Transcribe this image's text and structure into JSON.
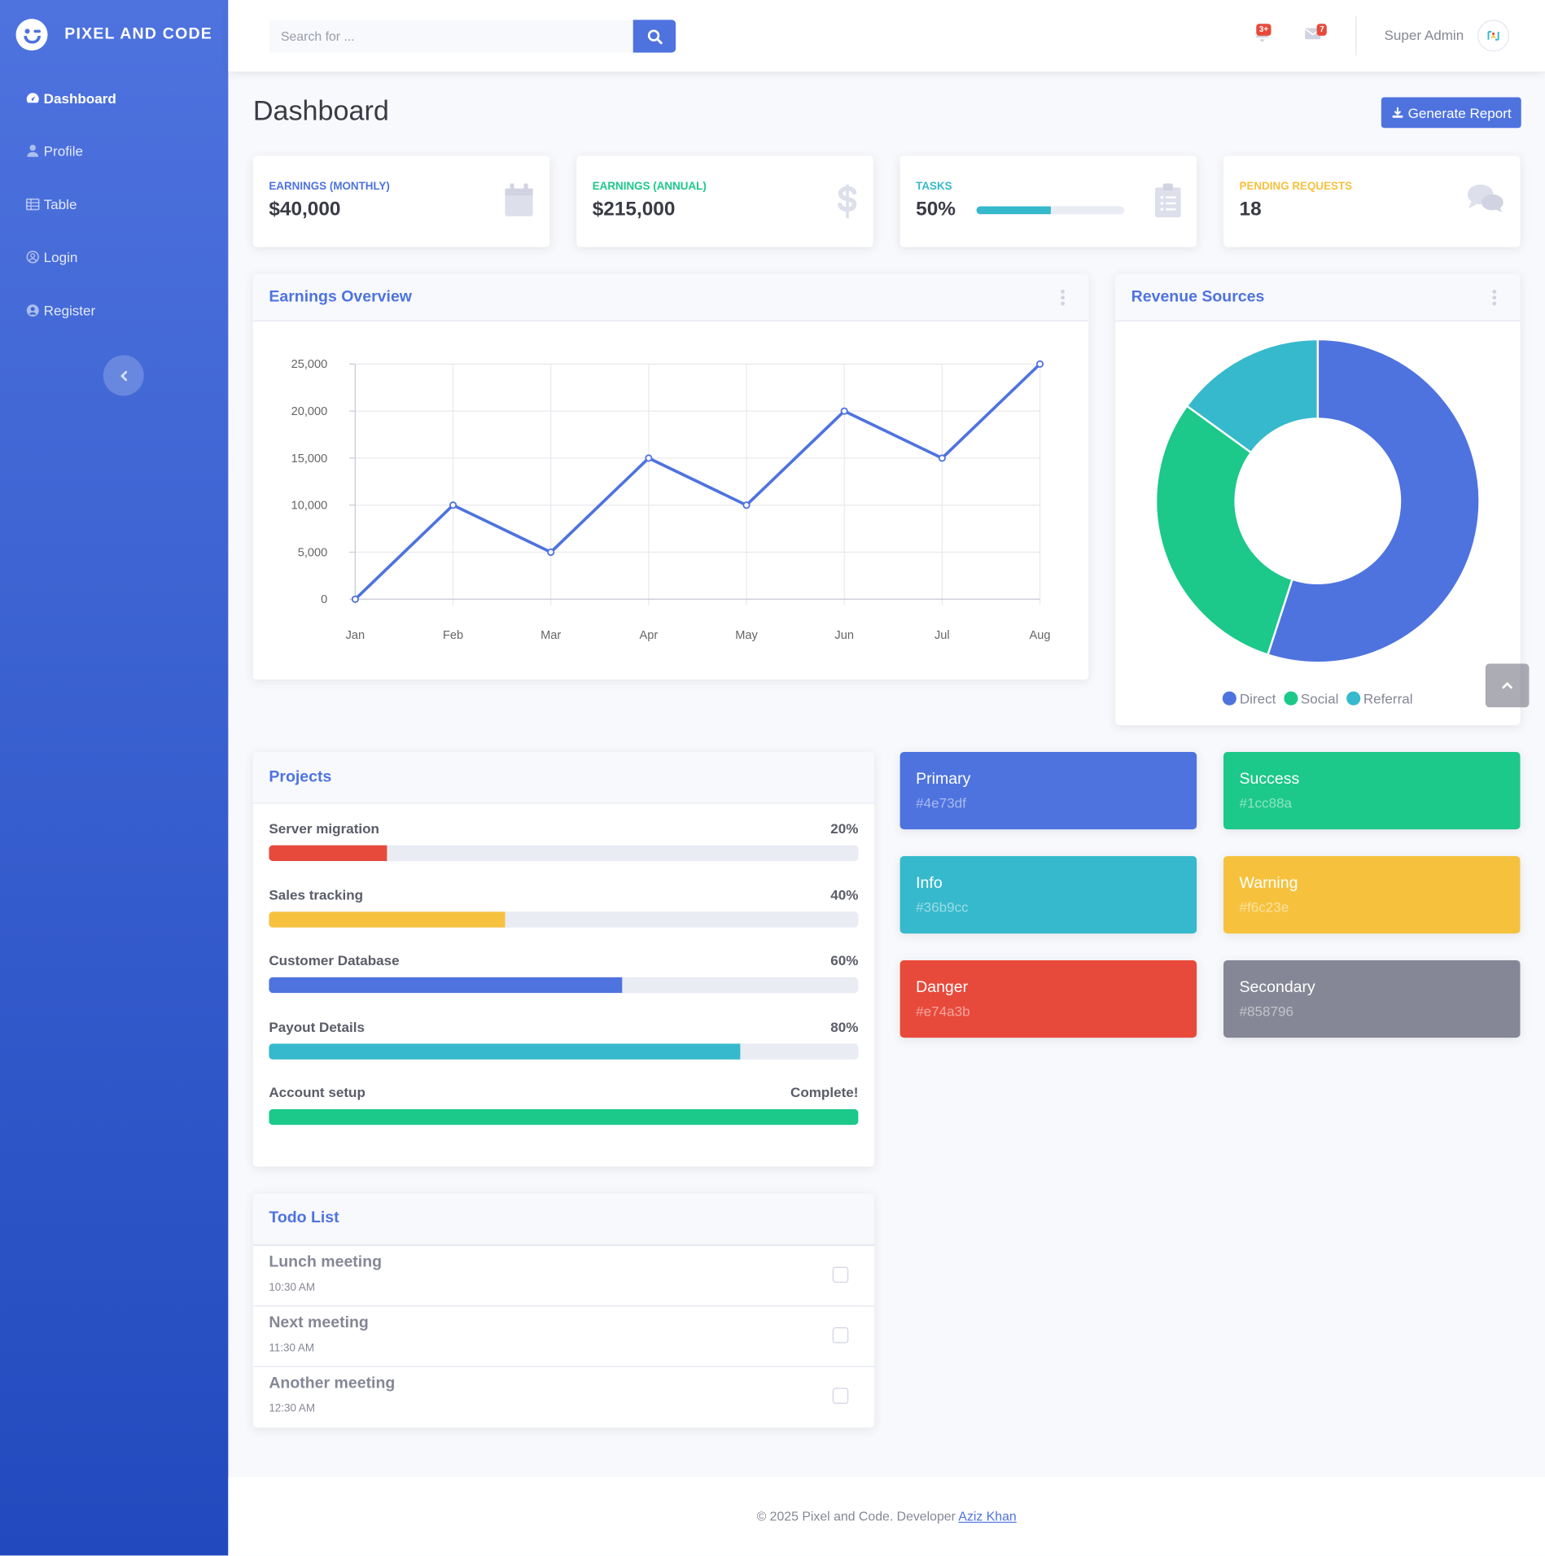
{
  "brand": {
    "name": "PIXEL AND CODE"
  },
  "sidebar": {
    "items": [
      {
        "label": "Dashboard",
        "icon": "tachometer-icon",
        "active": true
      },
      {
        "label": "Profile",
        "icon": "user-icon"
      },
      {
        "label": "Table",
        "icon": "table-icon"
      },
      {
        "label": "Login",
        "icon": "user-circle-icon"
      },
      {
        "label": "Register",
        "icon": "user-circle-solid-icon"
      }
    ],
    "toggle_icon": "chevron-left-icon"
  },
  "topbar": {
    "search": {
      "placeholder": "Search for ...",
      "value": ""
    },
    "alerts_badge": "3+",
    "messages_badge": "7",
    "user_name": "Super Admin"
  },
  "page": {
    "title": "Dashboard",
    "report_button": "Generate Report"
  },
  "stats": [
    {
      "label": "Earnings (Monthly)",
      "value": "$40,000",
      "color": "#4e73df",
      "icon": "calendar-icon"
    },
    {
      "label": "Earnings (Annual)",
      "value": "$215,000",
      "color": "#1cc88a",
      "icon": "dollar-icon"
    },
    {
      "label": "Tasks",
      "value": "50%",
      "progress": 0.5,
      "color": "#36b9cc",
      "icon": "clipboard-list-icon"
    },
    {
      "label": "Pending Requests",
      "value": "18",
      "color": "#f6c23e",
      "icon": "comments-icon"
    }
  ],
  "earnings": {
    "title": "Earnings Overview"
  },
  "revenue": {
    "title": "Revenue Sources"
  },
  "chart_data": [
    {
      "type": "line",
      "title": "Earnings Overview",
      "x": [
        "Jan",
        "Feb",
        "Mar",
        "Apr",
        "May",
        "Jun",
        "Jul",
        "Aug"
      ],
      "series": [
        {
          "values": [
            0,
            10000,
            5000,
            15000,
            10000,
            20000,
            15000,
            25000
          ],
          "color": "#4e73df"
        }
      ],
      "yticks": [
        "0",
        "5,000",
        "10,000",
        "15,000",
        "20,000",
        "25,000"
      ],
      "ylim": [
        0,
        25000
      ],
      "grid": true
    },
    {
      "type": "pie",
      "title": "Revenue Sources",
      "categories": [
        "Direct",
        "Social",
        "Referral"
      ],
      "values": [
        55,
        30,
        15
      ],
      "colors": [
        "#4e73df",
        "#1cc88a",
        "#36b9cc"
      ],
      "legend": "bottom"
    }
  ],
  "projects": {
    "title": "Projects",
    "items": [
      {
        "name": "Server migration",
        "pct": "20%",
        "progress": 0.2,
        "color": "#e74a3b"
      },
      {
        "name": "Sales tracking",
        "pct": "40%",
        "progress": 0.4,
        "color": "#f6c23e"
      },
      {
        "name": "Customer Database",
        "pct": "60%",
        "progress": 0.6,
        "color": "#4e73df"
      },
      {
        "name": "Payout Details",
        "pct": "80%",
        "progress": 0.8,
        "color": "#36b9cc"
      },
      {
        "name": "Account setup",
        "pct": "Complete!",
        "progress": 1.0,
        "color": "#1cc88a"
      }
    ]
  },
  "swatches": [
    {
      "name": "Primary",
      "hex": "#4e73df"
    },
    {
      "name": "Success",
      "hex": "#1cc88a"
    },
    {
      "name": "Info",
      "hex": "#36b9cc"
    },
    {
      "name": "Warning",
      "hex": "#f6c23e"
    },
    {
      "name": "Danger",
      "hex": "#e74a3b"
    },
    {
      "name": "Secondary",
      "hex": "#858796"
    }
  ],
  "todo": {
    "title": "Todo List",
    "items": [
      {
        "title": "Lunch meeting",
        "time": "10:30 AM"
      },
      {
        "title": "Next meeting",
        "time": "11:30 AM"
      },
      {
        "title": "Another meeting",
        "time": "12:30 AM"
      }
    ]
  },
  "footer": {
    "text": "© 2025 Pixel and Code. Developer ",
    "link": "Aziz Khan"
  }
}
